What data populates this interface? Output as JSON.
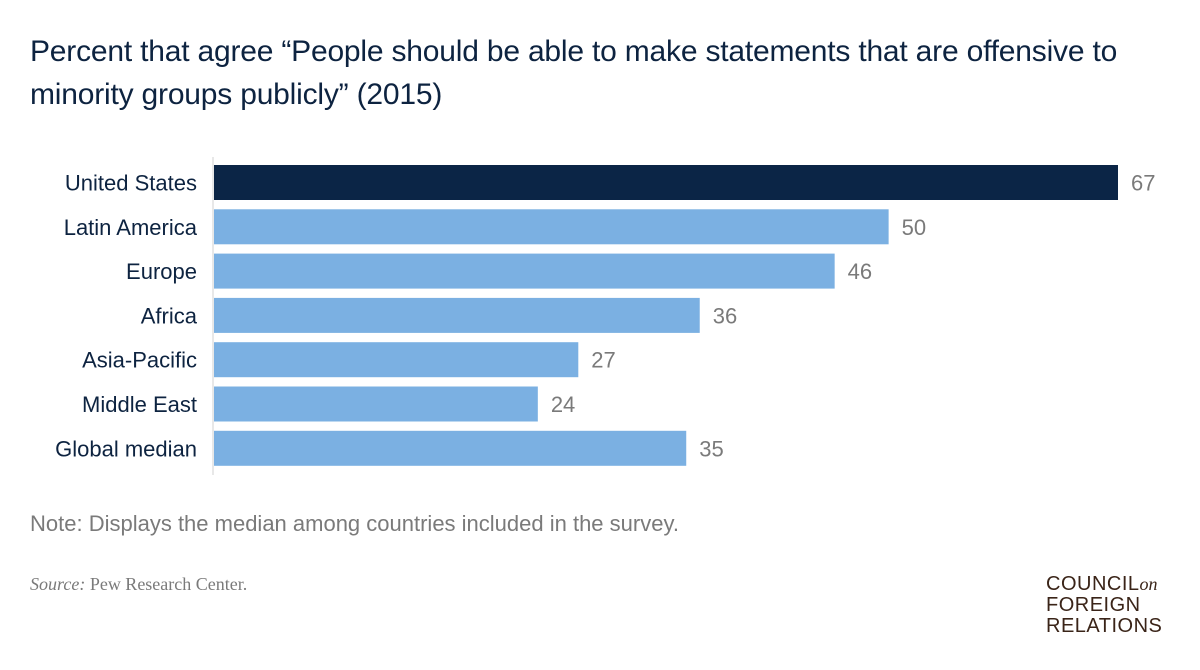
{
  "chart_data": {
    "type": "bar",
    "orientation": "horizontal",
    "title": "Percent that agree “People should be able to make statements that are offensive to minority groups publicly” (2015)",
    "categories": [
      "United States",
      "Latin America",
      "Europe",
      "Africa",
      "Asia-Pacific",
      "Middle East",
      "Global median"
    ],
    "values": [
      67,
      50,
      46,
      36,
      27,
      24,
      35
    ],
    "highlight_category": "United States",
    "colors": {
      "highlight": "#0b2546",
      "default": "#7bb0e2",
      "value_label": "#7a7a7a",
      "axis": "#d0d0d0"
    },
    "xlim": [
      0,
      67
    ],
    "xlabel": "",
    "ylabel": ""
  },
  "note": "Note: Displays the median among countries included in the survey.",
  "source": {
    "label": "Source:",
    "text": " Pew Research Center."
  },
  "logo": {
    "line1": "COUNCIL",
    "line1_suffix": "on",
    "line2": "FOREIGN",
    "line3": "RELATIONS"
  }
}
